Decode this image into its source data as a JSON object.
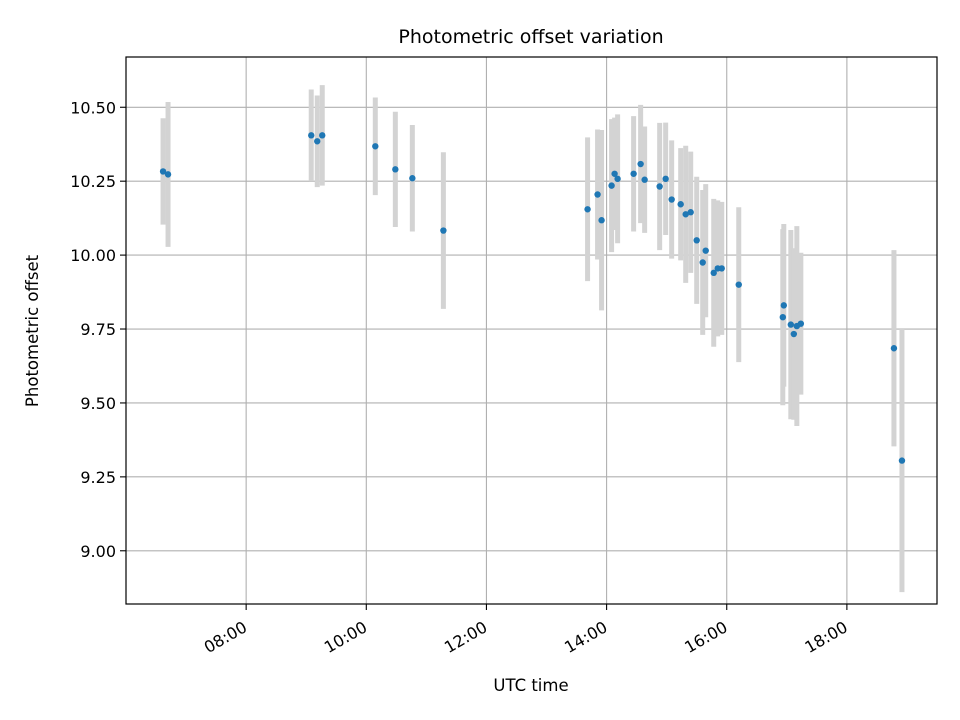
{
  "chart_data": {
    "type": "scatter",
    "title": "Photometric offset variation",
    "xlabel": "UTC time",
    "ylabel": "Photometric offset",
    "x_unit": "hours UTC",
    "xlim": [
      6.0,
      19.5
    ],
    "ylim": [
      8.82,
      10.67
    ],
    "x_ticks": [
      {
        "value": 8,
        "label": "08:00"
      },
      {
        "value": 10,
        "label": "10:00"
      },
      {
        "value": 12,
        "label": "12:00"
      },
      {
        "value": 14,
        "label": "14:00"
      },
      {
        "value": 16,
        "label": "16:00"
      },
      {
        "value": 18,
        "label": "18:00"
      }
    ],
    "y_ticks": [
      {
        "value": 9.0,
        "label": "9.00"
      },
      {
        "value": 9.25,
        "label": "9.25"
      },
      {
        "value": 9.5,
        "label": "9.50"
      },
      {
        "value": 9.75,
        "label": "9.75"
      },
      {
        "value": 10.0,
        "label": "10.00"
      },
      {
        "value": 10.25,
        "label": "10.25"
      },
      {
        "value": 10.5,
        "label": "10.50"
      }
    ],
    "grid": true,
    "colors": {
      "points": "#1f77b4",
      "errorbars": "#d3d3d3",
      "grid": "#b0b0b0"
    },
    "points": [
      {
        "x": "06:37",
        "y": 10.283,
        "err": 0.18
      },
      {
        "x": "06:42",
        "y": 10.273,
        "err": 0.245
      },
      {
        "x": "09:05",
        "y": 10.405,
        "err": 0.155
      },
      {
        "x": "09:11",
        "y": 10.385,
        "err": 0.155
      },
      {
        "x": "09:16",
        "y": 10.405,
        "err": 0.17
      },
      {
        "x": "10:09",
        "y": 10.368,
        "err": 0.165
      },
      {
        "x": "10:29",
        "y": 10.29,
        "err": 0.195
      },
      {
        "x": "10:46",
        "y": 10.26,
        "err": 0.18
      },
      {
        "x": "11:17",
        "y": 10.083,
        "err": 0.265
      },
      {
        "x": "13:41",
        "y": 10.155,
        "err": 0.243
      },
      {
        "x": "13:51",
        "y": 10.205,
        "err": 0.22
      },
      {
        "x": "13:55",
        "y": 10.118,
        "err": 0.305
      },
      {
        "x": "14:05",
        "y": 10.235,
        "err": 0.225
      },
      {
        "x": "14:08",
        "y": 10.275,
        "err": 0.19
      },
      {
        "x": "14:11",
        "y": 10.258,
        "err": 0.218
      },
      {
        "x": "14:27",
        "y": 10.275,
        "err": 0.195
      },
      {
        "x": "14:34",
        "y": 10.308,
        "err": 0.2
      },
      {
        "x": "14:38",
        "y": 10.255,
        "err": 0.18
      },
      {
        "x": "14:53",
        "y": 10.232,
        "err": 0.215
      },
      {
        "x": "14:59",
        "y": 10.258,
        "err": 0.19
      },
      {
        "x": "15:05",
        "y": 10.188,
        "err": 0.2
      },
      {
        "x": "15:14",
        "y": 10.172,
        "err": 0.19
      },
      {
        "x": "15:19",
        "y": 10.138,
        "err": 0.232
      },
      {
        "x": "15:24",
        "y": 10.145,
        "err": 0.205
      },
      {
        "x": "15:30",
        "y": 10.05,
        "err": 0.215
      },
      {
        "x": "15:36",
        "y": 9.975,
        "err": 0.245
      },
      {
        "x": "15:39",
        "y": 10.015,
        "err": 0.225
      },
      {
        "x": "15:47",
        "y": 9.94,
        "err": 0.25
      },
      {
        "x": "15:51",
        "y": 9.955,
        "err": 0.23
      },
      {
        "x": "15:55",
        "y": 9.955,
        "err": 0.225
      },
      {
        "x": "16:12",
        "y": 9.9,
        "err": 0.262
      },
      {
        "x": "16:56",
        "y": 9.79,
        "err": 0.298
      },
      {
        "x": "16:57",
        "y": 9.83,
        "err": 0.275
      },
      {
        "x": "17:04",
        "y": 9.765,
        "err": 0.32
      },
      {
        "x": "17:07",
        "y": 9.733,
        "err": 0.29
      },
      {
        "x": "17:10",
        "y": 9.76,
        "err": 0.338
      },
      {
        "x": "17:14",
        "y": 9.768,
        "err": 0.24
      },
      {
        "x": "18:47",
        "y": 9.685,
        "err": 0.332
      },
      {
        "x": "18:55",
        "y": 9.305,
        "err": 0.445
      }
    ]
  }
}
